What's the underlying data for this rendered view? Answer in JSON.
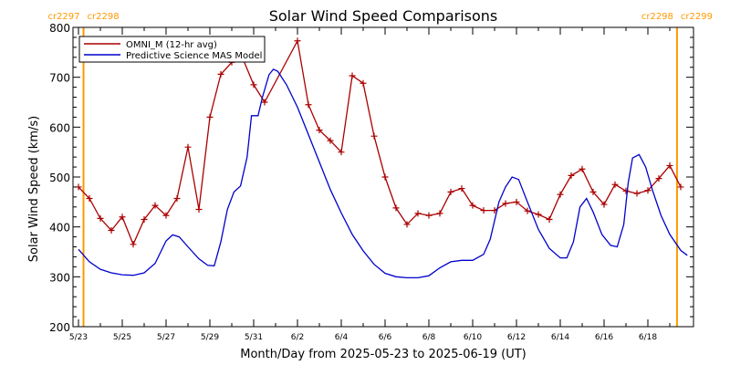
{
  "chart_data": {
    "type": "line",
    "title": "Solar Wind Speed Comparisons",
    "xlabel": "Month/Day from 2025-05-23 to 2025-06-19 (UT)",
    "ylabel": "Solar Wind Speed (km/s)",
    "ylim": [
      200,
      800
    ],
    "xlim_days": [
      0,
      27.5
    ],
    "x_ticks": [
      {
        "day": 0,
        "label": "5/23"
      },
      {
        "day": 2,
        "label": "5/25"
      },
      {
        "day": 4,
        "label": "5/27"
      },
      {
        "day": 6,
        "label": "5/29"
      },
      {
        "day": 8,
        "label": "5/31"
      },
      {
        "day": 10,
        "label": "6/2"
      },
      {
        "day": 12,
        "label": "6/4"
      },
      {
        "day": 14,
        "label": "6/6"
      },
      {
        "day": 16,
        "label": "6/8"
      },
      {
        "day": 18,
        "label": "6/10"
      },
      {
        "day": 20,
        "label": "6/12"
      },
      {
        "day": 22,
        "label": "6/14"
      },
      {
        "day": 24,
        "label": "6/16"
      },
      {
        "day": 26,
        "label": "6/18"
      }
    ],
    "y_ticks": [
      200,
      300,
      400,
      500,
      600,
      700,
      800
    ],
    "legend_position": "top-left",
    "grid": false,
    "carrington_markers": [
      {
        "day": 0.23,
        "label_left": "cr2297",
        "label_right": "cr2298"
      },
      {
        "day": 27.33,
        "label_left": "cr2298",
        "label_right": "cr2299"
      }
    ],
    "series": [
      {
        "name": "OMNI_M (12-hr avg)",
        "color": "#aa0000",
        "markers": true,
        "points": [
          [
            0.0,
            480
          ],
          [
            0.5,
            457
          ],
          [
            1.0,
            417
          ],
          [
            1.5,
            393
          ],
          [
            2.0,
            420
          ],
          [
            2.5,
            365
          ],
          [
            3.0,
            415
          ],
          [
            3.5,
            443
          ],
          [
            4.0,
            423
          ],
          [
            4.5,
            457
          ],
          [
            5.0,
            560
          ],
          [
            5.5,
            435
          ],
          [
            6.0,
            620
          ],
          [
            6.5,
            706
          ],
          [
            7.0,
            730
          ],
          [
            7.5,
            738
          ],
          [
            8.0,
            685
          ],
          [
            8.5,
            650
          ],
          [
            10.0,
            773
          ],
          [
            10.5,
            645
          ],
          [
            11.0,
            594
          ],
          [
            11.5,
            573
          ],
          [
            12.0,
            550
          ],
          [
            12.5,
            703
          ],
          [
            13.0,
            688
          ],
          [
            13.5,
            582
          ],
          [
            14.0,
            500
          ],
          [
            14.5,
            438
          ],
          [
            15.0,
            405
          ],
          [
            15.5,
            427
          ],
          [
            16.0,
            423
          ],
          [
            16.5,
            427
          ],
          [
            17.0,
            470
          ],
          [
            17.5,
            477
          ],
          [
            18.0,
            443
          ],
          [
            18.5,
            433
          ],
          [
            19.0,
            433
          ],
          [
            19.5,
            447
          ],
          [
            20.0,
            450
          ],
          [
            20.5,
            432
          ],
          [
            21.0,
            425
          ],
          [
            21.5,
            415
          ],
          [
            22.0,
            465
          ],
          [
            22.5,
            503
          ],
          [
            23.0,
            516
          ],
          [
            23.5,
            470
          ],
          [
            24.0,
            445
          ],
          [
            24.5,
            485
          ],
          [
            25.0,
            472
          ],
          [
            25.5,
            467
          ],
          [
            26.0,
            473
          ],
          [
            26.5,
            497
          ],
          [
            27.0,
            523
          ],
          [
            27.5,
            480
          ]
        ]
      },
      {
        "name": "Predictive Science MAS Model",
        "color": "#0000cc",
        "markers": false,
        "points": [
          [
            0.0,
            355
          ],
          [
            0.5,
            330
          ],
          [
            1.0,
            315
          ],
          [
            1.5,
            308
          ],
          [
            2.0,
            304
          ],
          [
            2.5,
            303
          ],
          [
            3.0,
            308
          ],
          [
            3.5,
            327
          ],
          [
            4.0,
            372
          ],
          [
            4.3,
            384
          ],
          [
            4.6,
            380
          ],
          [
            5.0,
            360
          ],
          [
            5.5,
            336
          ],
          [
            5.9,
            323
          ],
          [
            6.2,
            322
          ],
          [
            6.5,
            370
          ],
          [
            6.8,
            435
          ],
          [
            7.1,
            470
          ],
          [
            7.4,
            482
          ],
          [
            7.7,
            540
          ],
          [
            7.9,
            623
          ],
          [
            8.2,
            623
          ],
          [
            8.4,
            660
          ],
          [
            8.7,
            705
          ],
          [
            8.9,
            716
          ],
          [
            9.1,
            712
          ],
          [
            9.5,
            685
          ],
          [
            10.0,
            640
          ],
          [
            10.5,
            585
          ],
          [
            11.0,
            530
          ],
          [
            11.5,
            475
          ],
          [
            12.0,
            428
          ],
          [
            12.5,
            385
          ],
          [
            13.0,
            352
          ],
          [
            13.5,
            325
          ],
          [
            14.0,
            307
          ],
          [
            14.5,
            300
          ],
          [
            15.0,
            298
          ],
          [
            15.5,
            298
          ],
          [
            16.0,
            302
          ],
          [
            16.5,
            318
          ],
          [
            17.0,
            330
          ],
          [
            17.5,
            333
          ],
          [
            18.0,
            333
          ],
          [
            18.5,
            345
          ],
          [
            18.8,
            375
          ],
          [
            19.2,
            450
          ],
          [
            19.5,
            480
          ],
          [
            19.8,
            500
          ],
          [
            20.1,
            495
          ],
          [
            20.5,
            450
          ],
          [
            21.0,
            395
          ],
          [
            21.5,
            357
          ],
          [
            22.0,
            338
          ],
          [
            22.3,
            338
          ],
          [
            22.6,
            370
          ],
          [
            22.9,
            440
          ],
          [
            23.2,
            457
          ],
          [
            23.5,
            430
          ],
          [
            23.9,
            385
          ],
          [
            24.3,
            363
          ],
          [
            24.6,
            360
          ],
          [
            24.9,
            405
          ],
          [
            25.1,
            488
          ],
          [
            25.3,
            538
          ],
          [
            25.6,
            545
          ],
          [
            25.9,
            520
          ],
          [
            26.2,
            475
          ],
          [
            26.6,
            423
          ],
          [
            27.0,
            385
          ],
          [
            27.5,
            353
          ],
          [
            27.8,
            343
          ]
        ]
      }
    ]
  }
}
